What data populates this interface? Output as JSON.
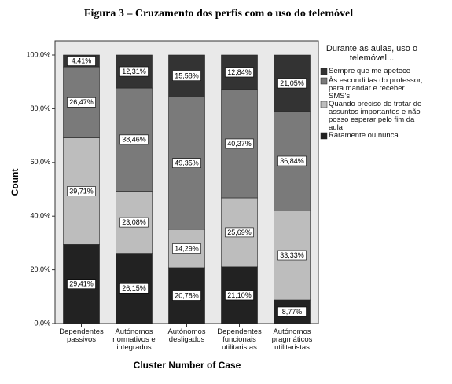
{
  "chart_data": {
    "type": "bar",
    "stacked": true,
    "title": "Figura 3 – Cruzamento dos perfis com o uso do telemóvel",
    "y_label": "Count",
    "x_label": "Cluster Number of Case",
    "legend_title": "Durante as aulas, uso o telemóvel...",
    "categories": [
      "Dependentes passivos",
      "Autónomos normativos e integrados",
      "Autónomos desligados",
      "Dependentes funcionais utilitaristas",
      "Autónomos pragmáticos utilitaristas"
    ],
    "series": [
      {
        "name": "Raramente ou nunca",
        "color": "#222222",
        "values": [
          29.41,
          26.15,
          20.78,
          21.1,
          8.77
        ],
        "value_labels": [
          "29,41%",
          "26,15%",
          "20,78%",
          "21,10%",
          "8,77%"
        ]
      },
      {
        "name": "Quando preciso de tratar de assuntos importantes e não posso esperar pelo fim da aula",
        "color": "#bdbdbd",
        "values": [
          39.71,
          23.08,
          14.29,
          25.69,
          33.33
        ],
        "value_labels": [
          "39,71%",
          "23,08%",
          "14,29%",
          "25,69%",
          "33,33%"
        ]
      },
      {
        "name": "Às escondidas do professor, para mandar e receber SMS's",
        "color": "#7a7a7a",
        "values": [
          26.47,
          38.46,
          49.35,
          40.37,
          36.84
        ],
        "value_labels": [
          "26,47%",
          "38,46%",
          "49,35%",
          "40,37%",
          "36,84%"
        ]
      },
      {
        "name": "Sempre que me apetece",
        "color": "#333333",
        "values": [
          4.41,
          12.31,
          15.58,
          12.84,
          21.05
        ],
        "value_labels": [
          "4,41%",
          "12,31%",
          "15,58%",
          "12,84%",
          "21,05%"
        ]
      }
    ],
    "ylim": [
      0,
      100
    ],
    "yticks": [
      {
        "value": 0,
        "label": "0,0%"
      },
      {
        "value": 20,
        "label": "20,0%"
      },
      {
        "value": 40,
        "label": "40,0%"
      },
      {
        "value": 60,
        "label": "60,0%"
      },
      {
        "value": 80,
        "label": "80,0%"
      },
      {
        "value": 100,
        "label": "100,0%"
      }
    ]
  }
}
